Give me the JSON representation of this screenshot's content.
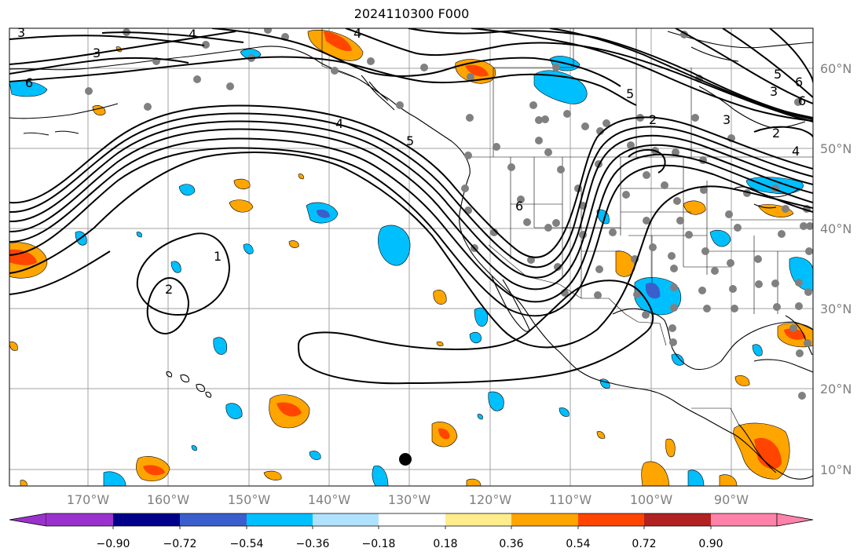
{
  "title": "2024110300 F000",
  "longitude_labels": [
    "170°W",
    "160°W",
    "150°W",
    "140°W",
    "130°W",
    "120°W",
    "110°W",
    "100°W",
    "90°W"
  ],
  "latitude_labels": [
    "60°N",
    "50°N",
    "40°N",
    "30°N",
    "20°N",
    "10°N"
  ],
  "colorbar": {
    "ticks": [
      "−0.90",
      "−0.72",
      "−0.54",
      "−0.36",
      "−0.18",
      "0.18",
      "0.36",
      "0.54",
      "0.72",
      "0.90"
    ],
    "colors": [
      "#9932CC",
      "#00008B",
      "#3A5FCD",
      "#00BFFF",
      "#B0E2FF",
      "#FFFFFF",
      "#FFEC8B",
      "#FFA500",
      "#FF4500",
      "#B22222",
      "#FF82AB"
    ]
  },
  "contour_labels": [
    "3",
    "4",
    "3",
    "6",
    "4",
    "5",
    "4",
    "5",
    "3",
    "2",
    "4",
    "6",
    "5",
    "6",
    "3",
    "1",
    "2",
    "2",
    "6"
  ],
  "marker": "black-dot"
}
